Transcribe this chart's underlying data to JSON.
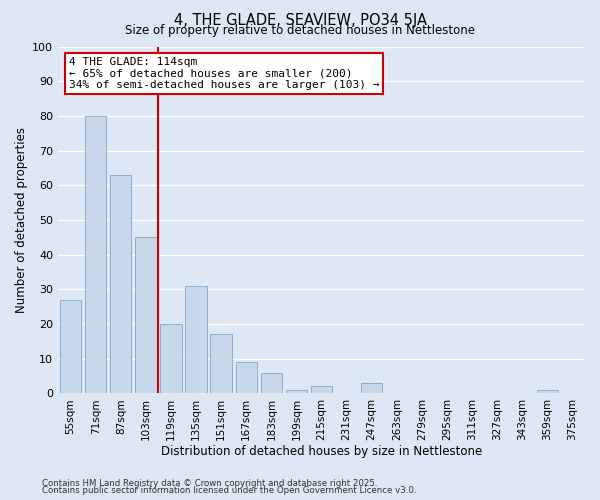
{
  "title": "4, THE GLADE, SEAVIEW, PO34 5JA",
  "subtitle": "Size of property relative to detached houses in Nettlestone",
  "xlabel": "Distribution of detached houses by size in Nettlestone",
  "ylabel": "Number of detached properties",
  "bar_labels": [
    "55sqm",
    "71sqm",
    "87sqm",
    "103sqm",
    "119sqm",
    "135sqm",
    "151sqm",
    "167sqm",
    "183sqm",
    "199sqm",
    "215sqm",
    "231sqm",
    "247sqm",
    "263sqm",
    "279sqm",
    "295sqm",
    "311sqm",
    "327sqm",
    "343sqm",
    "359sqm",
    "375sqm"
  ],
  "bar_values": [
    27,
    80,
    63,
    45,
    20,
    31,
    17,
    9,
    6,
    1,
    2,
    0,
    3,
    0,
    0,
    0,
    0,
    0,
    0,
    1,
    0
  ],
  "bar_color": "#c8d8ea",
  "bar_edge_color": "#8ab0cc",
  "vline_index": 4,
  "vline_color": "#cc0000",
  "annotation_text": "4 THE GLADE: 114sqm\n← 65% of detached houses are smaller (200)\n34% of semi-detached houses are larger (103) →",
  "annotation_box_facecolor": "#ffffff",
  "annotation_box_edgecolor": "#cc0000",
  "ylim": [
    0,
    100
  ],
  "yticks": [
    0,
    10,
    20,
    30,
    40,
    50,
    60,
    70,
    80,
    90,
    100
  ],
  "background_color": "#dde8f4",
  "grid_color": "#ffffff",
  "footer_line1": "Contains HM Land Registry data © Crown copyright and database right 2025.",
  "footer_line2": "Contains public sector information licensed under the Open Government Licence v3.0."
}
